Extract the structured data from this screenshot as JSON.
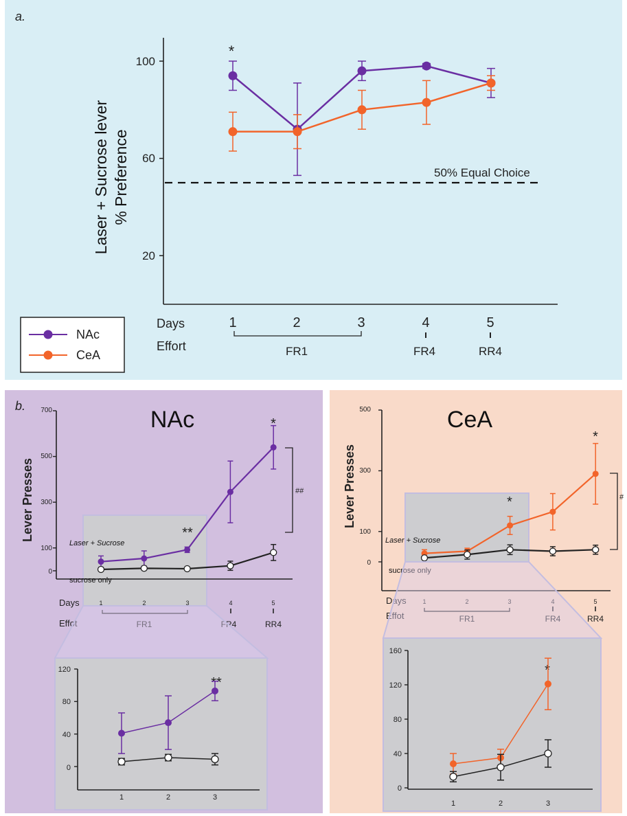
{
  "panel_a": {
    "label": "a.",
    "ylabel_line1": "Laser + Sucrose lever",
    "ylabel_line2": "% Preference",
    "yticks": [
      "100",
      "60",
      "20"
    ],
    "xticks": [
      "1",
      "2",
      "3",
      "4",
      "5"
    ],
    "days_label": "Days",
    "effort_label": "Effort",
    "effort_fr1": "FR1",
    "effort_fr4": "FR4",
    "effort_rr4": "RR4",
    "reference_label": "50% Equal Choice",
    "star": "*",
    "legend": [
      {
        "name": "NAc",
        "color": "#6a2ea2"
      },
      {
        "name": "CeA",
        "color": "#f2642a"
      }
    ]
  },
  "panel_b": {
    "label": "b.",
    "ylabel": "Lever Presses",
    "days_label": "Days",
    "effort_label": "Effot",
    "effort_fr1": "FR1",
    "effort_fr4": "FR4",
    "effort_rr4": "RR4",
    "nac": {
      "title": "NAc",
      "yticks": [
        "700",
        "500",
        "300",
        "100",
        "0"
      ],
      "xticks": [
        "1",
        "2",
        "3",
        "4",
        "5"
      ],
      "laser_label": "Laser + Sucrose",
      "sucrose_label": "sucrose only",
      "star_day3": "**",
      "star_day5": "*",
      "sig_label": "##",
      "inset_yticks": [
        "120",
        "80",
        "40",
        "0"
      ],
      "inset_xticks": [
        "1",
        "2",
        "3"
      ],
      "inset_star": "**"
    },
    "cea": {
      "title": "CeA",
      "yticks": [
        "500",
        "300",
        "100",
        "0"
      ],
      "xticks": [
        "1",
        "2",
        "3",
        "4",
        "5"
      ],
      "laser_label": "Laser + Sucrose",
      "sucrose_label": "sucrose only",
      "star_day3": "*",
      "star_day5": "*",
      "sig_label": "#",
      "inset_yticks": [
        "160",
        "120",
        "80",
        "40",
        "0"
      ],
      "inset_xticks": [
        "1",
        "2",
        "3"
      ],
      "inset_star": "*"
    }
  },
  "colors": {
    "nac": "#6a2ea2",
    "cea": "#f2642a",
    "panel_a_bg": "#d9eef5",
    "nac_bg": "#d2bfdf",
    "cea_bg": "#f9dac9",
    "inset_bg": "#cdcdd0",
    "inset_border": "#b6aedb"
  },
  "chart_data": [
    {
      "id": "preference",
      "type": "line",
      "x": [
        1,
        2,
        3,
        4,
        5
      ],
      "xlabel": "Days",
      "ylabel": "Laser + Sucrose lever % Preference",
      "ylim": [
        0,
        110
      ],
      "reference_line": 50,
      "series": [
        {
          "name": "NAc",
          "values": [
            94,
            72,
            96,
            98,
            91
          ],
          "err": [
            6,
            19,
            4,
            1,
            6
          ]
        },
        {
          "name": "CeA",
          "values": [
            71,
            71,
            80,
            83,
            91
          ],
          "err": [
            8,
            7,
            8,
            9,
            3
          ]
        }
      ]
    },
    {
      "id": "nac_presses",
      "type": "line",
      "x": [
        1,
        2,
        3,
        4,
        5
      ],
      "ylabel": "Lever Presses",
      "ylim": [
        0,
        700
      ],
      "series": [
        {
          "name": "Laser + Sucrose",
          "values": [
            40,
            54,
            92,
            345,
            540
          ],
          "err": [
            25,
            33,
            12,
            135,
            95
          ]
        },
        {
          "name": "sucrose only",
          "values": [
            6,
            11,
            9,
            22,
            80
          ],
          "err": [
            4,
            4,
            7,
            20,
            35
          ]
        }
      ]
    },
    {
      "id": "cea_presses",
      "type": "line",
      "x": [
        1,
        2,
        3,
        4,
        5
      ],
      "ylabel": "Lever Presses",
      "ylim": [
        0,
        500
      ],
      "series": [
        {
          "name": "Laser + Sucrose",
          "values": [
            28,
            35,
            120,
            165,
            290
          ],
          "err": [
            12,
            10,
            30,
            60,
            100
          ]
        },
        {
          "name": "sucrose only",
          "values": [
            13,
            24,
            40,
            35,
            40
          ],
          "err": [
            6,
            15,
            16,
            15,
            15
          ]
        }
      ]
    },
    {
      "id": "nac_inset",
      "type": "line",
      "x": [
        1,
        2,
        3
      ],
      "ylim": [
        0,
        120
      ],
      "series": [
        {
          "name": "Laser + Sucrose",
          "values": [
            41,
            54,
            93
          ],
          "err": [
            25,
            33,
            12
          ]
        },
        {
          "name": "sucrose only",
          "values": [
            6,
            11,
            9
          ],
          "err": [
            4,
            4,
            7
          ]
        }
      ]
    },
    {
      "id": "cea_inset",
      "type": "line",
      "x": [
        1,
        2,
        3
      ],
      "ylim": [
        0,
        160
      ],
      "series": [
        {
          "name": "Laser + Sucrose",
          "values": [
            28,
            35,
            121
          ],
          "err": [
            12,
            10,
            30
          ]
        },
        {
          "name": "sucrose only",
          "values": [
            13,
            24,
            40
          ],
          "err": [
            6,
            15,
            16
          ]
        }
      ]
    }
  ]
}
